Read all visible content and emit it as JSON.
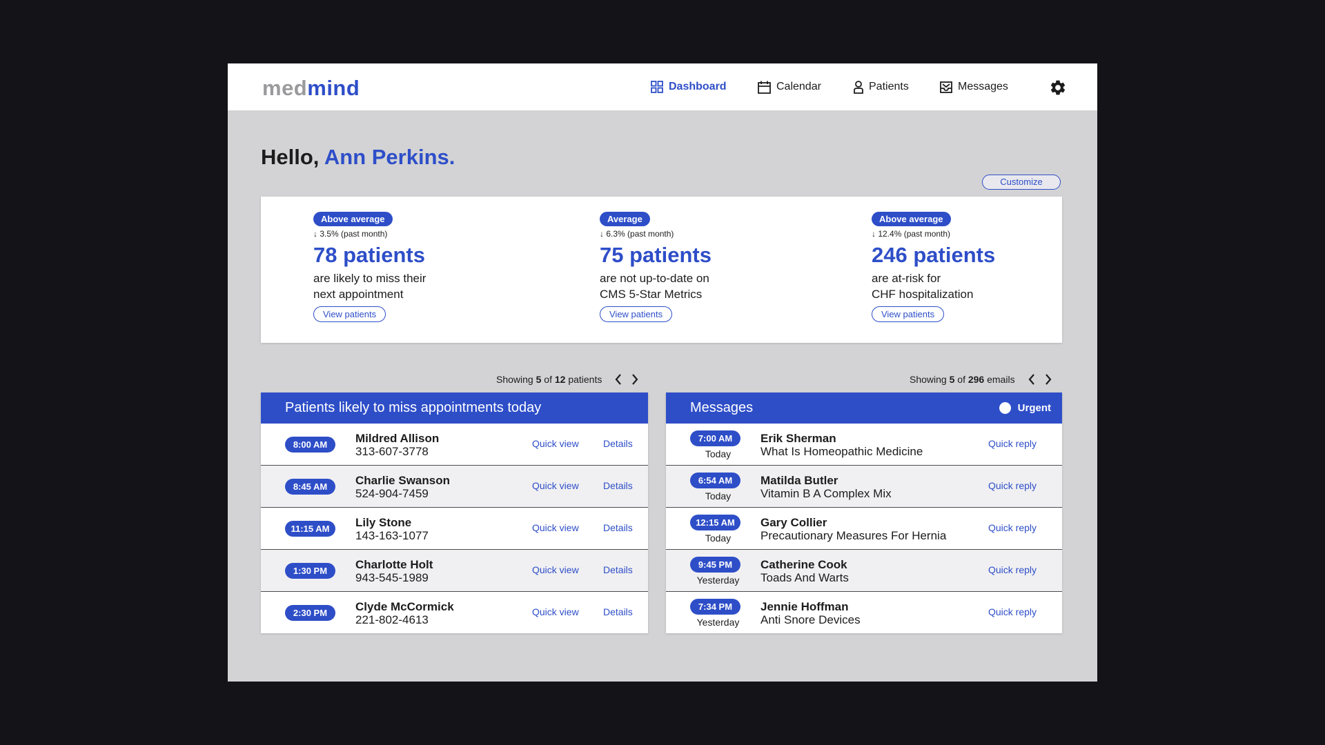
{
  "brand": {
    "part1": "med",
    "part2": "mind"
  },
  "nav": [
    {
      "label": "Dashboard",
      "active": true
    },
    {
      "label": "Calendar"
    },
    {
      "label": "Patients"
    },
    {
      "label": "Messages"
    }
  ],
  "greeting": {
    "prefix": "Hello,",
    "name": "Ann Perkins."
  },
  "customize_label": "Customize",
  "stats": [
    {
      "badge": "Above average",
      "delta": "↓ 3.5% (past month)",
      "count": "78 patients",
      "line1": "are likely to miss their",
      "line2": "next appointment",
      "button": "View patients"
    },
    {
      "badge": "Average",
      "delta": "↓ 6.3% (past month)",
      "count": "75 patients",
      "line1": "are not up-to-date on",
      "line2": "CMS 5-Star Metrics",
      "button": "View patients"
    },
    {
      "badge": "Above average",
      "delta": "↓ 12.4% (past month)",
      "count": "246 patients",
      "line1": "are at-risk for",
      "line2": "CHF hospitalization",
      "button": "View patients"
    }
  ],
  "appointments": {
    "pager": {
      "prefix": "Showing",
      "shown": "5",
      "of": "of",
      "total": "12",
      "unit": "patients"
    },
    "title": "Patients likely to miss appointments today",
    "quick_view_label": "Quick view",
    "details_label": "Details",
    "rows": [
      {
        "time": "8:00 AM",
        "name": "Mildred Allison",
        "phone": "313-607-3778"
      },
      {
        "time": "8:45 AM",
        "name": "Charlie Swanson",
        "phone": "524-904-7459"
      },
      {
        "time": "11:15 AM",
        "name": "Lily Stone",
        "phone": "143-163-1077"
      },
      {
        "time": "1:30 PM",
        "name": "Charlotte Holt",
        "phone": "943-545-1989"
      },
      {
        "time": "2:30 PM",
        "name": "Clyde McCormick",
        "phone": "221-802-4613"
      }
    ]
  },
  "messages": {
    "pager": {
      "prefix": "Showing",
      "shown": "5",
      "of": "of",
      "total": "296",
      "unit": "emails"
    },
    "title": "Messages",
    "urgent_label": "Urgent",
    "quick_reply_label": "Quick reply",
    "rows": [
      {
        "time": "7:00 AM",
        "day": "Today",
        "sender": "Erik Sherman",
        "subject": "What Is Homeopathic Medicine"
      },
      {
        "time": "6:54 AM",
        "day": "Today",
        "sender": "Matilda Butler",
        "subject": "Vitamin B A Complex Mix"
      },
      {
        "time": "12:15 AM",
        "day": "Today",
        "sender": "Gary Collier",
        "subject": "Precautionary Measures For Hernia"
      },
      {
        "time": "9:45 PM",
        "day": "Yesterday",
        "sender": "Catherine Cook",
        "subject": "Toads And Warts"
      },
      {
        "time": "7:34 PM",
        "day": "Yesterday",
        "sender": "Jennie Hoffman",
        "subject": "Anti Snore Devices"
      }
    ]
  },
  "colors": {
    "accent": "#2e4ec8",
    "background": "#d3d3d5",
    "outer": "#131318"
  },
  "icons": [
    "dashboard-grid-icon",
    "calendar-icon",
    "person-icon",
    "inbox-icon",
    "gear-icon",
    "chevron-left-icon",
    "chevron-right-icon"
  ]
}
